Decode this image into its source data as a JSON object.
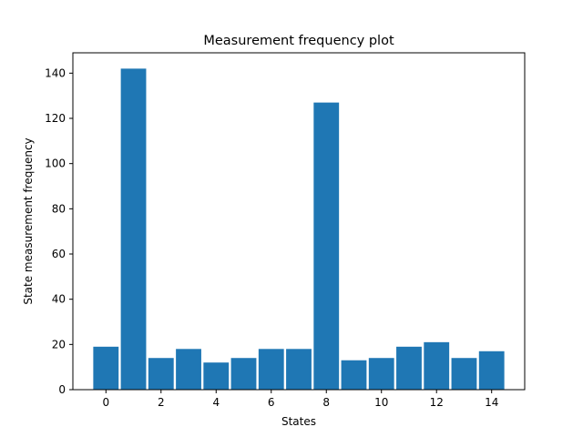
{
  "chart_data": {
    "type": "bar",
    "title": "Measurement frequency plot",
    "xlabel": "States",
    "ylabel": "State measurement frequency",
    "categories": [
      0,
      1,
      2,
      3,
      4,
      5,
      6,
      7,
      8,
      9,
      10,
      11,
      12,
      13,
      14
    ],
    "values": [
      19,
      142,
      14,
      18,
      12,
      14,
      18,
      18,
      127,
      13,
      14,
      19,
      21,
      14,
      17
    ],
    "xlim": [
      -1.2,
      15.2
    ],
    "ylim": [
      0,
      149
    ],
    "xticks": [
      0,
      2,
      4,
      6,
      8,
      10,
      12,
      14
    ],
    "yticks": [
      0,
      20,
      40,
      60,
      80,
      100,
      120,
      140
    ],
    "bar_color": "#1f77b4",
    "grid": false,
    "legend": "none"
  }
}
